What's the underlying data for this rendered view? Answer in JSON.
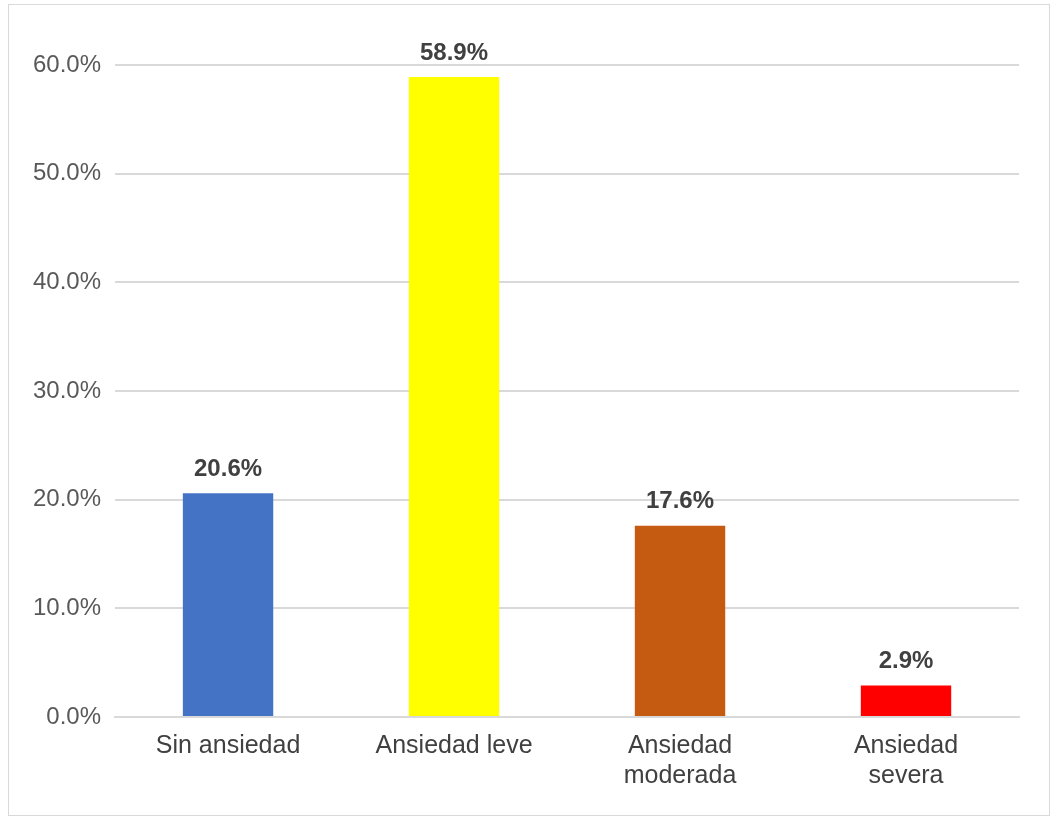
{
  "chart_data": {
    "type": "bar",
    "categories": [
      "Sin ansiedad",
      "Ansiedad leve",
      "Ansiedad moderada",
      "Ansiedad severa"
    ],
    "values": [
      20.6,
      58.9,
      17.6,
      2.9
    ],
    "colors": [
      "#4472c4",
      "#ffff00",
      "#c55a11",
      "#ff0000"
    ],
    "value_labels": [
      "20.6%",
      "58.9%",
      "17.6%",
      "2.9%"
    ],
    "ylim": [
      0,
      60
    ],
    "yticks": [
      {
        "value": 0,
        "label": "0.0%"
      },
      {
        "value": 10,
        "label": "10.0%"
      },
      {
        "value": 20,
        "label": "20.0%"
      },
      {
        "value": 30,
        "label": "30.0%"
      },
      {
        "value": 40,
        "label": "40.0%"
      },
      {
        "value": 50,
        "label": "50.0%"
      },
      {
        "value": 60,
        "label": "60.0%"
      }
    ],
    "grid": "y",
    "legend": false
  }
}
